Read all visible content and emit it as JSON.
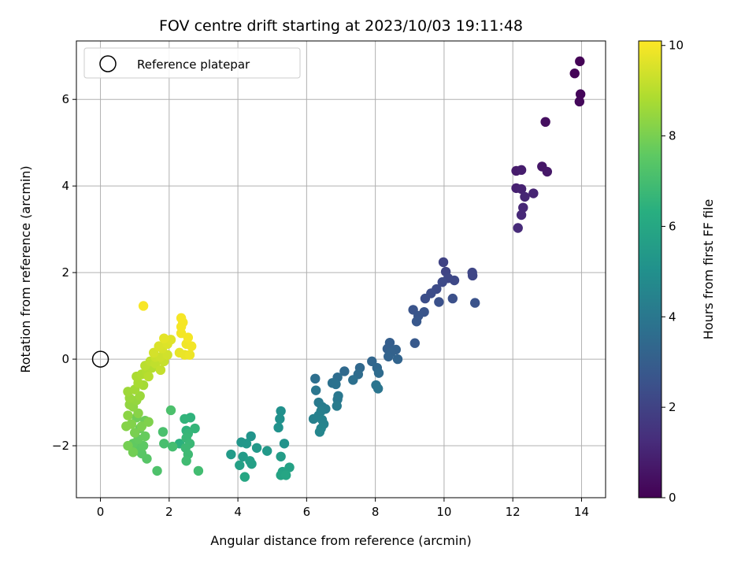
{
  "chart_data": {
    "type": "scatter",
    "title": "FOV centre drift starting at 2023/10/03 19:11:48",
    "xlabel": "Angular distance from reference (arcmin)",
    "ylabel": "Rotation from reference (arcmin)",
    "xlim": [
      -0.7,
      14.7
    ],
    "ylim": [
      -3.2,
      7.35
    ],
    "xticks": [
      0,
      2,
      4,
      6,
      8,
      10,
      12,
      14
    ],
    "yticks": [
      -2,
      0,
      2,
      4,
      6
    ],
    "grid": true,
    "colorbar": {
      "label": "Hours from first FF file",
      "range": [
        0,
        10.1
      ],
      "ticks": [
        0,
        2,
        4,
        6,
        8,
        10
      ],
      "colormap": "viridis"
    },
    "legend": {
      "placement": "top-left",
      "entries": [
        {
          "label": "Reference platepar",
          "marker": "open-circle"
        }
      ]
    },
    "reference_point": {
      "x": 0,
      "y": 0
    },
    "points": [
      [
        13.95,
        6.88,
        0.05
      ],
      [
        13.8,
        6.6,
        0.1
      ],
      [
        13.97,
        6.12,
        0.15
      ],
      [
        13.94,
        5.95,
        0.2
      ],
      [
        12.95,
        5.48,
        0.4
      ],
      [
        12.85,
        4.45,
        0.6
      ],
      [
        13.0,
        4.33,
        0.65
      ],
      [
        12.1,
        4.35,
        0.75
      ],
      [
        12.25,
        4.37,
        0.8
      ],
      [
        12.1,
        3.95,
        0.9
      ],
      [
        12.25,
        3.93,
        0.95
      ],
      [
        12.6,
        3.83,
        1.0
      ],
      [
        12.35,
        3.75,
        1.05
      ],
      [
        12.3,
        3.5,
        1.1
      ],
      [
        12.25,
        3.33,
        1.15
      ],
      [
        12.15,
        3.03,
        1.2
      ],
      [
        9.98,
        2.24,
        2.0
      ],
      [
        10.05,
        2.02,
        2.05
      ],
      [
        10.82,
        2.0,
        2.1
      ],
      [
        10.83,
        1.93,
        2.12
      ],
      [
        10.12,
        1.87,
        2.15
      ],
      [
        10.3,
        1.82,
        2.2
      ],
      [
        9.95,
        1.78,
        2.25
      ],
      [
        9.78,
        1.62,
        2.3
      ],
      [
        9.62,
        1.52,
        2.35
      ],
      [
        9.45,
        1.4,
        2.4
      ],
      [
        10.25,
        1.4,
        2.45
      ],
      [
        9.85,
        1.32,
        2.5
      ],
      [
        10.9,
        1.3,
        2.55
      ],
      [
        9.1,
        1.14,
        2.6
      ],
      [
        9.42,
        1.09,
        2.65
      ],
      [
        9.25,
        1.0,
        2.7
      ],
      [
        9.2,
        0.87,
        2.75
      ],
      [
        9.15,
        0.37,
        2.8
      ],
      [
        8.42,
        0.38,
        3.0
      ],
      [
        8.35,
        0.24,
        3.05
      ],
      [
        8.6,
        0.22,
        3.1
      ],
      [
        8.45,
        0.15,
        3.15
      ],
      [
        8.38,
        0.06,
        3.2
      ],
      [
        8.65,
        0.0,
        3.25
      ],
      [
        7.9,
        -0.05,
        3.3
      ],
      [
        8.05,
        -0.2,
        3.35
      ],
      [
        7.55,
        -0.2,
        3.4
      ],
      [
        7.1,
        -0.28,
        3.45
      ],
      [
        8.1,
        -0.32,
        3.5
      ],
      [
        7.5,
        -0.35,
        3.55
      ],
      [
        6.9,
        -0.42,
        3.6
      ],
      [
        6.25,
        -0.45,
        3.65
      ],
      [
        7.35,
        -0.48,
        3.7
      ],
      [
        6.75,
        -0.55,
        3.75
      ],
      [
        6.85,
        -0.58,
        3.8
      ],
      [
        8.02,
        -0.6,
        3.85
      ],
      [
        8.08,
        -0.68,
        3.9
      ],
      [
        6.27,
        -0.72,
        3.95
      ],
      [
        6.92,
        -0.85,
        4.0
      ],
      [
        6.9,
        -0.93,
        4.05
      ],
      [
        6.35,
        -1.0,
        4.1
      ],
      [
        6.88,
        -1.08,
        4.15
      ],
      [
        6.45,
        -1.1,
        4.2
      ],
      [
        6.55,
        -1.15,
        4.25
      ],
      [
        6.42,
        -1.2,
        4.3
      ],
      [
        6.35,
        -1.3,
        4.35
      ],
      [
        6.2,
        -1.38,
        4.4
      ],
      [
        6.45,
        -1.4,
        4.45
      ],
      [
        6.5,
        -1.5,
        4.5
      ],
      [
        6.42,
        -1.6,
        4.55
      ],
      [
        6.38,
        -1.68,
        4.6
      ],
      [
        5.25,
        -1.2,
        5.0
      ],
      [
        5.22,
        -1.38,
        5.05
      ],
      [
        5.18,
        -1.58,
        5.1
      ],
      [
        5.35,
        -1.95,
        5.15
      ],
      [
        4.38,
        -1.78,
        5.2
      ],
      [
        4.1,
        -1.92,
        5.25
      ],
      [
        4.25,
        -1.95,
        5.3
      ],
      [
        4.55,
        -2.05,
        5.35
      ],
      [
        4.85,
        -2.12,
        5.4
      ],
      [
        3.8,
        -2.2,
        5.45
      ],
      [
        4.15,
        -2.25,
        5.5
      ],
      [
        5.25,
        -2.25,
        5.55
      ],
      [
        4.35,
        -2.35,
        5.6
      ],
      [
        4.4,
        -2.42,
        5.65
      ],
      [
        4.05,
        -2.45,
        5.7
      ],
      [
        5.5,
        -2.5,
        5.75
      ],
      [
        5.3,
        -2.6,
        5.8
      ],
      [
        5.25,
        -2.68,
        5.85
      ],
      [
        5.4,
        -2.68,
        5.9
      ],
      [
        4.2,
        -2.72,
        5.95
      ],
      [
        2.3,
        -1.95,
        6.4
      ],
      [
        2.5,
        -1.65,
        6.45
      ],
      [
        2.62,
        -1.35,
        6.5
      ],
      [
        2.45,
        -1.38,
        6.55
      ],
      [
        2.75,
        -1.6,
        6.6
      ],
      [
        2.55,
        -1.72,
        6.65
      ],
      [
        2.5,
        -1.82,
        6.7
      ],
      [
        2.6,
        -1.95,
        6.75
      ],
      [
        2.48,
        -2.05,
        6.8
      ],
      [
        2.55,
        -2.2,
        6.85
      ],
      [
        2.5,
        -2.35,
        6.9
      ],
      [
        2.85,
        -2.58,
        6.95
      ],
      [
        2.1,
        -2.02,
        7.0
      ],
      [
        1.85,
        -1.95,
        7.05
      ],
      [
        1.82,
        -1.68,
        7.1
      ],
      [
        2.05,
        -1.18,
        7.15
      ],
      [
        1.65,
        -2.58,
        7.2
      ],
      [
        1.35,
        -2.3,
        7.4
      ],
      [
        1.2,
        -2.18,
        7.45
      ],
      [
        1.05,
        -2.05,
        7.5
      ],
      [
        1.25,
        -2.0,
        7.55
      ],
      [
        0.95,
        -1.95,
        7.6
      ],
      [
        1.1,
        -1.85,
        7.65
      ],
      [
        1.3,
        -1.78,
        7.7
      ],
      [
        1.15,
        -1.6,
        7.75
      ],
      [
        1.3,
        -1.42,
        7.8
      ],
      [
        1.05,
        -1.35,
        7.85
      ],
      [
        0.95,
        -2.15,
        7.9
      ],
      [
        0.8,
        -2.0,
        7.95
      ],
      [
        1.0,
        -1.7,
        8.0
      ],
      [
        1.2,
        -1.55,
        8.05
      ],
      [
        1.4,
        -1.45,
        8.1
      ],
      [
        0.9,
        -1.5,
        8.15
      ],
      [
        0.75,
        -1.55,
        8.2
      ],
      [
        1.1,
        -1.25,
        8.25
      ],
      [
        0.8,
        -1.3,
        8.3
      ],
      [
        0.95,
        -1.1,
        8.35
      ],
      [
        0.85,
        -1.05,
        8.4
      ],
      [
        1.05,
        -0.95,
        8.45
      ],
      [
        0.85,
        -0.9,
        8.5
      ],
      [
        1.15,
        -0.85,
        8.55
      ],
      [
        0.8,
        -0.75,
        8.6
      ],
      [
        1.0,
        -0.7,
        8.65
      ],
      [
        1.25,
        -0.6,
        8.7
      ],
      [
        1.1,
        -0.55,
        8.75
      ],
      [
        1.05,
        -0.4,
        8.8
      ],
      [
        1.2,
        -0.35,
        8.85
      ],
      [
        1.35,
        -0.3,
        8.9
      ],
      [
        1.5,
        -0.2,
        8.95
      ],
      [
        1.4,
        -0.4,
        9.0
      ],
      [
        1.3,
        -0.15,
        9.05
      ],
      [
        1.45,
        -0.05,
        9.1
      ],
      [
        1.6,
        -0.1,
        9.15
      ],
      [
        1.75,
        -0.25,
        9.2
      ],
      [
        1.85,
        -0.05,
        9.25
      ],
      [
        1.6,
        0.05,
        9.3
      ],
      [
        1.75,
        0.05,
        9.35
      ],
      [
        1.95,
        0.1,
        9.4
      ],
      [
        1.55,
        0.15,
        9.45
      ],
      [
        1.8,
        0.25,
        9.5
      ],
      [
        1.7,
        0.3,
        9.55
      ],
      [
        1.95,
        0.35,
        9.6
      ],
      [
        2.05,
        0.45,
        9.65
      ],
      [
        1.85,
        0.48,
        9.7
      ],
      [
        2.3,
        0.15,
        9.75
      ],
      [
        2.45,
        0.1,
        9.8
      ],
      [
        2.6,
        0.1,
        9.85
      ],
      [
        2.5,
        0.35,
        9.9
      ],
      [
        2.65,
        0.3,
        9.92
      ],
      [
        2.35,
        0.6,
        9.94
      ],
      [
        2.55,
        0.5,
        9.96
      ],
      [
        2.35,
        0.75,
        9.97
      ],
      [
        2.4,
        0.85,
        9.98
      ],
      [
        2.35,
        0.95,
        9.99
      ],
      [
        1.25,
        1.23,
        10.0
      ]
    ]
  }
}
